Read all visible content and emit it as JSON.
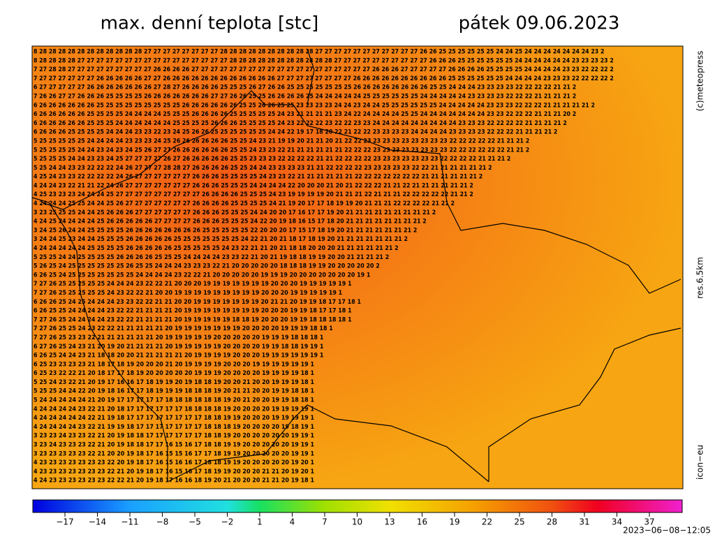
{
  "header": {
    "title": "max. denní teplota [stc]",
    "date": "pátek 09.06.2023"
  },
  "side": {
    "copyright": "(c)meteopress",
    "resolution": "res.6.5km",
    "model": "icon−eu"
  },
  "grid": {
    "rows": [
      "8 28 28 28 28 28 28 28 28 28 28 28 27 27 27 27 27 27 27 27 28 28 28 28 28 28 28 28 28 28 27 27 27 27 27 27 27 27 27 27 27 26 26 25 25 25 25 25 25 24 24 25 24 24 24 24 24 24 24 23 2",
      "8 28 28 28 28 27 27 27 27 27 27 27 27 27 27 27 27 27 27 27 27 28 28 28 28 28 28 28 28 28 28 28 27 27 27 27 27 27 27 27 27 27 26 26 26 25 25 25 25 25 25 24 24 24 24 24 24 23 23 23 23 2",
      "7 27 28 28 27 27 27 27 27 27 27 27 27 26 26 26 26 27 27 27 27 27 27 27 27 27 27 27 27 27 27 27 27 27 27 27 26 26 26 27 27 27 27 27 26 26 26 26 25 25 25 25 24 24 24 24 23 23 22 22 22 2",
      "7 27 27 27 27 27 27 26 26 26 26 26 27 27 26 26 26 26 26 26 26 26 26 26 26 26 27 27 27 27 27 27 27 27 26 26 26 26 26 26 26 26 26 26 25 25 25 25 25 25 24 24 24 24 23 23 23 22 22 22 22 2",
      "6 27 27 27 27 27 26 26 26 26 26 26 26 27 28 27 26 26 26 26 25 25 25 26 27 26 26 25 25 25 25 25 25 25 26 26 26 26 26 26 26 26 25 25 24 24 24 23 23 23 23 22 22 22 22 21 21 2",
      "7 26 26 27 27 26 26 26 25 25 25 25 26 26 26 26 26 26 26 27 27 26 26 25 25 26 26 26 26 25 24 24 24 24 24 25 25 25 25 25 25 24 24 24 24 24 23 23 23 23 22 22 22 21 21 21 21 2",
      "6 26 26 26 26 26 26 25 25 25 25 25 25 25 25 25 26 26 26 26 26 26 25 25 26 26 25 25 23 23 23 23 24 24 23 24 24 25 25 25 25 25 25 24 24 24 24 24 23 23 23 22 22 22 21 21 21 21 21 2",
      "6 26 26 26 26 26 25 25 25 25 24 24 24 24 25 25 25 26 26 26 26 25 25 25 25 25 24 23 21 21 21 21 23 24 22 24 24 24 24 25 25 24 24 24 24 24 24 24 23 23 22 22 22 21 21 21 20 2",
      "6 26 26 26 26 26 25 25 25 24 24 24 24 24 24 25 25 25 25 26 26 26 25 25 25 25 24 23 22 22 22 23 22 22 23 23 24 24 24 24 24 24 24 24 24 23 23 23 22 22 22 22 21 21 21 21 2",
      "6 26 26 26 25 25 25 25 24 24 24 23 23 22 23 24 25 26 26 25 25 25 25 25 25 24 24 22 19 17 18 20 22 21 22 22 23 23 23 23 24 24 24 24 23 23 23 23 22 22 22 21 21 21 21 2",
      "5 25 25 25 25 25 24 24 24 24 23 23 23 24 25 26 26 26 26 26 26 25 25 24 23 21 19 19 20 21 21 20 21 22 22 23 23 23 23 23 23 23 23 23 22 22 22 22 22 21 21 21 2",
      "5 25 25 25 25 24 24 23 24 23 24 25 26 27 27 26 26 26 26 26 26 25 25 24 23 23 22 21 21 21 21 21 21 22 22 22 23 23 23 23 23 23 23 23 22 22 22 22 22 22 21 21 2",
      "5 25 25 25 24 24 23 23 24 25 27 27 27 27 26 27 26 26 26 26 26 25 25 23 23 23 22 22 22 22 21 21 22 22 22 22 23 23 23 23 23 23 23 22 22 22 22 21 21 21 2",
      "5 25 24 24 23 23 22 22 22 24 26 27 27 27 28 28 27 26 26 26 26 25 25 24 24 23 23 23 23 21 21 22 22 22 22 23 23 23 23 23 22 22 21 21 21 21 21 21 2",
      "4 25 24 23 23 22 22 22 22 24 26 27 27 27 27 27 27 26 26 26 25 25 25 25 24 23 23 22 21 21 21 21 21 21 22 22 22 22 22 22 22 21 21 21 21 21 21 2",
      "4 24 24 23 22 21 21 22 24 26 27 27 27 27 27 27 27 26 26 26 25 25 25 24 24 24 24 22 20 20 20 21 20 21 22 22 22 21 21 22 21 21 21 21 21 21 2",
      "4 25 23 23 23 24 24 24 25 27 27 27 27 27 27 27 27 27 26 26 26 26 25 25 25 24 23 19 19 19 19 20 21 21 21 22 21 21 21 22 22 22 22 22 21 21 2",
      "4 24 24 24 25 25 24 24 25 26 27 27 27 27 27 27 27 26 26 26 26 25 25 25 25 24 21 19 20 17 17 18 19 19 20 21 21 21 22 22 22 22 21 21 2",
      "3 23 25 25 25 24 24 25 26 26 26 27 27 27 27 27 27 26 26 26 25 25 25 24 24 20 20 17 16 17 17 19 20 21 21 21 21 21 21 21 21 21 2",
      "4 24 25 24 24 24 24 25 26 26 26 26 26 27 27 27 27 26 26 26 25 25 25 24 22 20 19 18 16 15 17 18 20 21 21 21 21 21 21 21 21 2",
      "3 24 25 26 24 24 25 25 25 25 26 26 26 26 26 26 26 26 25 25 25 25 25 22 20 20 20 17 15 17 18 19 20 21 21 21 21 21 21 21 2",
      "3 24 24 25 23 24 24 25 25 25 26 26 26 26 26 25 25 25 25 25 25 25 24 22 21 20 21 18 17 18 19 20 21 21 21 21 21 21 21 2",
      "4 24 24 24 24 24 25 25 25 25 26 26 26 26 26 25 25 25 25 25 24 23 22 21 21 20 21 18 18 20 20 20 21 21 21 21 21 21 2",
      "5 25 25 24 24 25 25 25 25 26 26 26 26 25 25 25 24 24 24 24 23 23 22 21 20 21 19 18 18 19 19 20 20 21 21 21 21 2",
      "5 26 25 24 25 25 25 25 25 25 26 25 25 24 24 24 23 23 23 22 21 20 20 20 20 20 18 18 18 19 19 20 20 20 20 20 2",
      "6 26 25 24 25 25 25 25 25 25 25 24 24 24 24 23 22 22 21 20 20 20 20 20 19 19 19 20 20 20 20 20 20 20 19 1",
      "7 27 26 25 25 25 25 25 24 24 24 23 22 22 21 20 20 20 19 19 19 19 19 19 19 20 20 20 19 19 19 19 19 1",
      "7 27 26 25 25 25 25 25 24 23 22 22 21 20 20 19 19 19 19 19 19 19 19 19 20 20 20 19 19 19 19 19 1",
      "6 26 26 25 24 25 24 24 24 23 23 22 22 21 21 20 20 19 19 19 19 19 19 19 20 21 21 20 19 19 18 17 17 18 1",
      "6 26 25 25 24 24 24 24 23 22 22 21 21 21 21 20 19 19 19 19 19 19 19 19 20 20 20 19 19 18 17 17 18 1",
      "7 27 26 25 24 24 24 24 23 22 22 21 21 21 21 20 19 19 19 19 19 18 18 19 20 20 20 19 19 18 18 18 18 1",
      "7 27 26 25 25 24 23 22 22 21 21 21 21 21 20 19 19 19 19 19 19 19 20 20 20 20 19 19 19 18 18 1",
      "7 27 26 25 23 23 22 21 21 21 21 21 21 20 19 19 19 19 19 20 20 20 20 20 19 19 19 18 18 18 1",
      "6 27 26 25 24 23 21 20 19 20 21 21 21 21 20 19 19 19 19 19 20 20 20 20 19 19 18 18 19 19 1",
      "6 26 25 24 24 23 21 18 18 20 20 21 21 21 21 21 20 19 19 19 19 20 20 20 19 19 19 19 19 19 1",
      "6 25 23 23 23 23 21 18 17 18 19 20 20 20 21 20 19 19 19 19 20 20 20 19 19 19 19 19 19 1",
      "6 25 23 22 22 21 20 18 17 17 18 19 20 20 20 20 20 19 19 19 20 20 20 20 19 19 19 19 18 1",
      "5 25 24 23 22 21 20 19 17 16 16 17 18 19 19 20 19 18 18 19 20 20 21 20 20 19 19 19 18 1",
      "5 25 25 24 24 22 20 19 18 16 17 17 18 19 19 19 18 18 18 19 20 21 21 20 20 19 19 18 18 1",
      "5 24 24 24 24 24 21 20 19 17 17 17 17 17 18 18 18 18 18 18 19 20 21 20 20 19 19 18 18 1",
      "4 24 24 24 24 23 22 21 20 18 17 17 17 17 17 17 18 18 18 18 19 20 20 20 20 19 19 19 19 1",
      "4 24 24 24 24 24 22 21 19 18 17 17 17 17 17 17 17 17 18 18 19 19 20 20 20 19 19 19 19 1",
      "4 24 24 24 24 23 22 21 19 19 18 17 17 17 17 17 17 17 18 18 18 19 20 20 20 20 19 18 19 1",
      "3 23 23 24 23 23 22 21 20 19 18 18 17 17 17 17 17 17 18 18 19 20 20 20 20 20 20 19 19 1",
      "3 23 24 23 23 23 22 21 20 19 18 18 17 17 16 15 16 17 18 18 19 19 20 20 20 20 20 19 19 1",
      "3 23 23 23 23 23 22 21 20 20 19 18 17 16 15 15 16 17 17 18 19 19 20 20 20 20 20 19 19 1",
      "4 23 23 23 23 23 23 23 22 20 19 18 17 16 15 16 16 17 18 18 19 19 20 20 20 20 20 19 20 1",
      "4 23 23 23 23 23 23 23 22 21 20 19 18 17 16 15 16 17 18 19 19 20 20 20 21 21 20 19 20 1",
      "4 24 23 23 23 23 23 23 22 22 21 20 19 18 17 16 16 18 19 20 21 20 20 20 21 21 20 19 18 1"
    ]
  },
  "colorbar": {
    "labels": [
      "−17",
      "−14",
      "−11",
      "−8",
      "−5",
      "−2",
      "1",
      "4",
      "7",
      "10",
      "13",
      "16",
      "19",
      "22",
      "25",
      "28",
      "31",
      "34",
      "37"
    ]
  },
  "footer": {
    "timestamp": "2023−06−08−12:05"
  }
}
